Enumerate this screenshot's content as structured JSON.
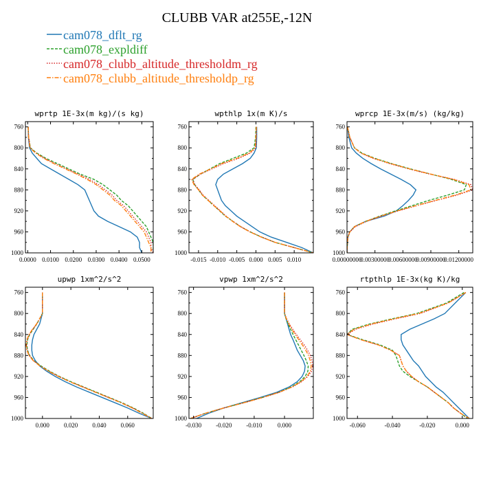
{
  "figure": {
    "title": "CLUBB VAR at255E,-12N"
  },
  "legend": {
    "placement": "top-left",
    "entries": [
      {
        "label": "cam078_dflt_rg",
        "color": "#1f77b4",
        "dash": "solid"
      },
      {
        "label": "cam078_expldiff",
        "color": "#2ca02c",
        "dash": "dashed"
      },
      {
        "label": "cam078_clubb_altitude_thresholdm_rg",
        "color": "#d62728",
        "dash": "dotted"
      },
      {
        "label": "cam078_clubb_altitude_thresholdp_rg",
        "color": "#ff7f0e",
        "dash": "dashdot"
      }
    ]
  },
  "chart_data": [
    {
      "type": "line",
      "title": "wprtp  1E-3x(m kg)/(s kg)",
      "xlim": [
        -0.001,
        0.055
      ],
      "ylim": [
        1000,
        750
      ],
      "y_inverted": true,
      "xticks": [
        0,
        0.01,
        0.02,
        0.03,
        0.04,
        0.05
      ],
      "xtick_labels": [
        "0.0000",
        "0.0100",
        "0.0200",
        "0.0300",
        "0.0400",
        "0.0500"
      ],
      "yticks": [
        760,
        800,
        840,
        880,
        920,
        960,
        1000
      ],
      "y": [
        760,
        780,
        800,
        810,
        820,
        830,
        840,
        850,
        860,
        870,
        880,
        890,
        900,
        910,
        920,
        930,
        940,
        950,
        960,
        970,
        980,
        990,
        1000
      ],
      "series": [
        {
          "name": "cam078_dflt_rg",
          "values": [
            0.0002,
            0.0003,
            0.0008,
            0.002,
            0.004,
            0.006,
            0.01,
            0.014,
            0.018,
            0.022,
            0.025,
            0.026,
            0.027,
            0.028,
            0.029,
            0.031,
            0.035,
            0.04,
            0.045,
            0.048,
            0.049,
            0.049,
            0.05
          ]
        },
        {
          "name": "cam078_expldiff",
          "values": [
            0.0002,
            0.0004,
            0.0012,
            0.004,
            0.008,
            0.013,
            0.018,
            0.023,
            0.029,
            0.033,
            0.036,
            0.039,
            0.041,
            0.044,
            0.046,
            0.048,
            0.05,
            0.052,
            0.053,
            0.054,
            0.055,
            0.055,
            0.055
          ]
        },
        {
          "name": "cam078_clubb_altitude_thresholdm_rg",
          "values": [
            0.0002,
            0.0004,
            0.0011,
            0.0037,
            0.0075,
            0.012,
            0.017,
            0.022,
            0.027,
            0.031,
            0.034,
            0.037,
            0.039,
            0.042,
            0.044,
            0.046,
            0.048,
            0.05,
            0.052,
            0.053,
            0.054,
            0.054,
            0.055
          ]
        },
        {
          "name": "cam078_clubb_altitude_thresholdp_rg",
          "values": [
            0.0002,
            0.0004,
            0.001,
            0.0035,
            0.007,
            0.0115,
            0.0165,
            0.0215,
            0.026,
            0.03,
            0.033,
            0.036,
            0.038,
            0.041,
            0.043,
            0.045,
            0.047,
            0.049,
            0.051,
            0.052,
            0.053,
            0.054,
            0.054
          ]
        }
      ]
    },
    {
      "type": "line",
      "title": "wpthlp  1x(m K)/s",
      "xlim": [
        -0.0175,
        0.015
      ],
      "ylim": [
        1000,
        750
      ],
      "y_inverted": true,
      "xticks": [
        -0.015,
        -0.01,
        -0.005,
        0,
        0.005,
        0.01
      ],
      "xtick_labels": [
        "-0.015",
        "-0.010",
        "-0.005",
        "0.000",
        "0.005",
        "0.010"
      ],
      "yticks": [
        760,
        800,
        840,
        880,
        920,
        960,
        1000
      ],
      "y": [
        760,
        780,
        800,
        810,
        820,
        830,
        840,
        850,
        860,
        870,
        880,
        890,
        900,
        910,
        920,
        930,
        940,
        950,
        960,
        970,
        980,
        990,
        1000
      ],
      "series": [
        {
          "name": "cam078_dflt_rg",
          "values": [
            0.0002,
            0.0002,
            0.0001,
            -0.0005,
            -0.0015,
            -0.0035,
            -0.006,
            -0.0085,
            -0.01,
            -0.0105,
            -0.01,
            -0.0095,
            -0.009,
            -0.008,
            -0.0065,
            -0.005,
            -0.003,
            -0.001,
            0.001,
            0.004,
            0.008,
            0.012,
            0.015
          ]
        },
        {
          "name": "cam078_expldiff",
          "values": [
            0.0,
            -0.0001,
            -0.0005,
            -0.0025,
            -0.006,
            -0.0095,
            -0.012,
            -0.0145,
            -0.0165,
            -0.016,
            -0.015,
            -0.014,
            -0.0125,
            -0.011,
            -0.0095,
            -0.008,
            -0.006,
            -0.004,
            -0.0015,
            0.0015,
            0.005,
            0.01,
            0.015
          ]
        },
        {
          "name": "cam078_clubb_altitude_thresholdm_rg",
          "values": [
            0.0001,
            0.0001,
            0.0,
            -0.0015,
            -0.0045,
            -0.0085,
            -0.0115,
            -0.0145,
            -0.0165,
            -0.016,
            -0.0148,
            -0.0138,
            -0.0123,
            -0.0108,
            -0.0093,
            -0.0078,
            -0.006,
            -0.004,
            -0.0015,
            0.0015,
            0.005,
            0.01,
            0.015
          ]
        },
        {
          "name": "cam078_clubb_altitude_thresholdp_rg",
          "values": [
            0.0001,
            0.0,
            -0.0002,
            -0.0018,
            -0.005,
            -0.009,
            -0.0118,
            -0.0148,
            -0.0168,
            -0.0162,
            -0.015,
            -0.014,
            -0.0125,
            -0.011,
            -0.0094,
            -0.0079,
            -0.0061,
            -0.0041,
            -0.0016,
            0.0014,
            0.005,
            0.01,
            0.015
          ]
        }
      ]
    },
    {
      "type": "line",
      "title": "wprcp  1E-3x(m/s) (kg/kg)",
      "xlim": [
        0,
        0.0135
      ],
      "ylim": [
        1000,
        750
      ],
      "y_inverted": true,
      "xticks": [
        0,
        0.003,
        0.006,
        0.009,
        0.012
      ],
      "xtick_labels": [
        "0.00000000",
        "0.00300000",
        "0.00600000",
        "0.00900000",
        "0.01200000"
      ],
      "yticks": [
        760,
        800,
        840,
        880,
        920,
        960,
        1000
      ],
      "y": [
        760,
        780,
        800,
        810,
        820,
        830,
        840,
        850,
        860,
        870,
        880,
        890,
        900,
        910,
        920,
        930,
        940,
        950,
        960,
        970,
        980,
        990,
        1000
      ],
      "series": [
        {
          "name": "cam078_dflt_rg",
          "values": [
            5e-05,
            0.0002,
            0.0005,
            0.001,
            0.0017,
            0.0026,
            0.0036,
            0.0047,
            0.0058,
            0.0068,
            0.0074,
            0.0071,
            0.0066,
            0.006,
            0.0053,
            0.004,
            0.002,
            0.0008,
            0.0003,
            0.0001,
            5e-05,
            2e-05,
            0.0
          ]
        },
        {
          "name": "cam078_expldiff",
          "values": [
            5e-05,
            0.0003,
            0.0008,
            0.0016,
            0.003,
            0.0048,
            0.0068,
            0.009,
            0.0112,
            0.0128,
            0.0126,
            0.0108,
            0.0088,
            0.007,
            0.0052,
            0.0035,
            0.002,
            0.0008,
            0.0003,
            0.0001,
            5e-05,
            2e-05,
            0.0
          ]
        },
        {
          "name": "cam078_clubb_altitude_thresholdm_rg",
          "values": [
            5e-05,
            0.0003,
            0.0008,
            0.0015,
            0.0028,
            0.0046,
            0.0066,
            0.0089,
            0.0115,
            0.0133,
            0.0135,
            0.0118,
            0.0096,
            0.0075,
            0.0055,
            0.0037,
            0.0021,
            0.0009,
            0.0003,
            0.0001,
            5e-05,
            2e-05,
            0.0
          ]
        },
        {
          "name": "cam078_clubb_altitude_thresholdp_rg",
          "values": [
            5e-05,
            0.0003,
            0.0008,
            0.0015,
            0.0029,
            0.0047,
            0.0067,
            0.009,
            0.0114,
            0.0131,
            0.0133,
            0.0116,
            0.0095,
            0.0074,
            0.0054,
            0.0036,
            0.002,
            0.0008,
            0.0003,
            0.0001,
            5e-05,
            2e-05,
            0.0
          ]
        }
      ]
    },
    {
      "type": "line",
      "title": "upwp  1xm^2/s^2",
      "xlim": [
        -0.012,
        0.078
      ],
      "ylim": [
        1000,
        750
      ],
      "y_inverted": true,
      "xticks": [
        0,
        0.02,
        0.04,
        0.06
      ],
      "xtick_labels": [
        "0.000",
        "0.020",
        "0.040",
        "0.060"
      ],
      "yticks": [
        760,
        800,
        840,
        880,
        920,
        960,
        1000
      ],
      "y": [
        760,
        780,
        800,
        810,
        820,
        830,
        840,
        850,
        860,
        870,
        880,
        890,
        900,
        910,
        920,
        930,
        940,
        950,
        960,
        970,
        980,
        990,
        1000
      ],
      "series": [
        {
          "name": "cam078_dflt_rg",
          "values": [
            0.0,
            0.0,
            0.0,
            -0.001,
            -0.002,
            -0.004,
            -0.006,
            -0.007,
            -0.0075,
            -0.0075,
            -0.007,
            -0.005,
            -0.002,
            0.003,
            0.009,
            0.016,
            0.024,
            0.033,
            0.042,
            0.051,
            0.06,
            0.068,
            0.077
          ]
        },
        {
          "name": "cam078_expldiff",
          "values": [
            0.0,
            0.0,
            0.0,
            -0.002,
            -0.004,
            -0.0065,
            -0.009,
            -0.0105,
            -0.011,
            -0.0105,
            -0.009,
            -0.006,
            -0.001,
            0.005,
            0.012,
            0.02,
            0.029,
            0.038,
            0.047,
            0.056,
            0.064,
            0.071,
            0.077
          ]
        },
        {
          "name": "cam078_clubb_altitude_thresholdm_rg",
          "values": [
            0.0,
            0.0,
            0.0,
            -0.002,
            -0.004,
            -0.0068,
            -0.0092,
            -0.0107,
            -0.0112,
            -0.0107,
            -0.0092,
            -0.0062,
            -0.0015,
            0.0045,
            0.0115,
            0.0195,
            0.0285,
            0.0375,
            0.0465,
            0.0555,
            0.0635,
            0.0705,
            0.077
          ]
        },
        {
          "name": "cam078_clubb_altitude_thresholdp_rg",
          "values": [
            0.0,
            0.0,
            0.0,
            -0.002,
            -0.0042,
            -0.007,
            -0.0095,
            -0.011,
            -0.0115,
            -0.011,
            -0.0095,
            -0.0065,
            -0.0018,
            0.0042,
            0.0112,
            0.0192,
            0.0282,
            0.0372,
            0.0462,
            0.0552,
            0.0632,
            0.0702,
            0.077
          ]
        }
      ]
    },
    {
      "type": "line",
      "title": "vpwp  1xm^2/s^2",
      "xlim": [
        -0.0315,
        0.0095
      ],
      "ylim": [
        1000,
        750
      ],
      "y_inverted": true,
      "xticks": [
        -0.03,
        -0.02,
        -0.01,
        0
      ],
      "xtick_labels": [
        "-0.030",
        "-0.020",
        "-0.010",
        "0.000"
      ],
      "yticks": [
        760,
        800,
        840,
        880,
        920,
        960,
        1000
      ],
      "y": [
        760,
        780,
        800,
        810,
        820,
        830,
        840,
        850,
        860,
        870,
        880,
        890,
        900,
        910,
        920,
        930,
        940,
        950,
        960,
        970,
        980,
        990,
        1000
      ],
      "series": [
        {
          "name": "cam078_dflt_rg",
          "values": [
            0.0,
            0.0,
            0.0,
            0.0005,
            0.001,
            0.0015,
            0.002,
            0.0028,
            0.0035,
            0.0042,
            0.0052,
            0.0062,
            0.0068,
            0.0066,
            0.0058,
            0.0042,
            0.0015,
            -0.0025,
            -0.008,
            -0.014,
            -0.02,
            -0.025,
            -0.029
          ]
        },
        {
          "name": "cam078_expldiff",
          "values": [
            0.0,
            0.0,
            0.0,
            0.0005,
            0.0012,
            0.002,
            0.0028,
            0.0037,
            0.0046,
            0.0055,
            0.0064,
            0.0072,
            0.0078,
            0.0077,
            0.0068,
            0.005,
            0.0022,
            -0.0018,
            -0.0073,
            -0.0135,
            -0.02,
            -0.026,
            -0.031
          ]
        },
        {
          "name": "cam078_clubb_altitude_thresholdm_rg",
          "values": [
            0.0,
            0.0,
            0.0,
            0.0007,
            0.0016,
            0.0027,
            0.0039,
            0.0052,
            0.0065,
            0.0076,
            0.0085,
            0.0091,
            0.0093,
            0.0089,
            0.0077,
            0.0056,
            0.0026,
            -0.0016,
            -0.0071,
            -0.0133,
            -0.02,
            -0.026,
            -0.031
          ]
        },
        {
          "name": "cam078_clubb_altitude_thresholdp_rg",
          "values": [
            0.0,
            0.0,
            0.0,
            0.0006,
            0.0014,
            0.0024,
            0.0035,
            0.0047,
            0.0059,
            0.007,
            0.0079,
            0.0085,
            0.0088,
            0.0085,
            0.0074,
            0.0054,
            0.0025,
            -0.0017,
            -0.0072,
            -0.0134,
            -0.02,
            -0.026,
            -0.031
          ]
        }
      ]
    },
    {
      "type": "line",
      "title": "rtpthlp  1E-3x(kg K)/kg",
      "xlim": [
        -0.066,
        0.006
      ],
      "ylim": [
        1000,
        750
      ],
      "y_inverted": true,
      "xticks": [
        -0.06,
        -0.04,
        -0.02,
        0
      ],
      "xtick_labels": [
        "-0.060",
        "-0.040",
        "-0.020",
        "0.000"
      ],
      "yticks": [
        760,
        800,
        840,
        880,
        920,
        960,
        1000
      ],
      "y": [
        760,
        780,
        800,
        810,
        820,
        830,
        840,
        850,
        860,
        870,
        880,
        890,
        900,
        910,
        920,
        930,
        940,
        950,
        960,
        970,
        980,
        990,
        1000
      ],
      "series": [
        {
          "name": "cam078_dflt_rg",
          "values": [
            0.002,
            -0.004,
            -0.01,
            -0.016,
            -0.023,
            -0.03,
            -0.035,
            -0.035,
            -0.034,
            -0.032,
            -0.03,
            -0.028,
            -0.025,
            -0.023,
            -0.021,
            -0.018,
            -0.015,
            -0.011,
            -0.008,
            -0.005,
            -0.002,
            0.001,
            0.004
          ]
        },
        {
          "name": "cam078_expldiff",
          "values": [
            0.001,
            -0.009,
            -0.026,
            -0.04,
            -0.053,
            -0.063,
            -0.066,
            -0.057,
            -0.047,
            -0.04,
            -0.038,
            -0.037,
            -0.036,
            -0.034,
            -0.03,
            -0.025,
            -0.02,
            -0.016,
            -0.012,
            -0.008,
            -0.005,
            -0.001,
            0.003
          ]
        },
        {
          "name": "cam078_clubb_altitude_thresholdm_rg",
          "values": [
            0.002,
            -0.008,
            -0.024,
            -0.038,
            -0.051,
            -0.061,
            -0.066,
            -0.058,
            -0.048,
            -0.041,
            -0.036,
            -0.035,
            -0.034,
            -0.032,
            -0.029,
            -0.025,
            -0.02,
            -0.016,
            -0.012,
            -0.008,
            -0.005,
            -0.001,
            0.004
          ]
        },
        {
          "name": "cam078_clubb_altitude_thresholdp_rg",
          "values": [
            0.002,
            -0.008,
            -0.025,
            -0.039,
            -0.052,
            -0.062,
            -0.066,
            -0.058,
            -0.048,
            -0.041,
            -0.036,
            -0.035,
            -0.034,
            -0.032,
            -0.029,
            -0.025,
            -0.02,
            -0.016,
            -0.012,
            -0.008,
            -0.005,
            -0.001,
            0.004
          ]
        }
      ]
    }
  ]
}
